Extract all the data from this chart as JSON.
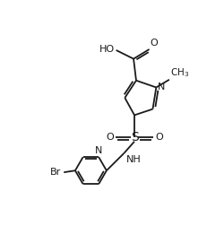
{
  "bg_color": "#ffffff",
  "line_color": "#1a1a1a",
  "fig_width": 2.51,
  "fig_height": 2.81,
  "dpi": 100,
  "xlim": [
    0,
    10
  ],
  "ylim": [
    0,
    11.2
  ]
}
